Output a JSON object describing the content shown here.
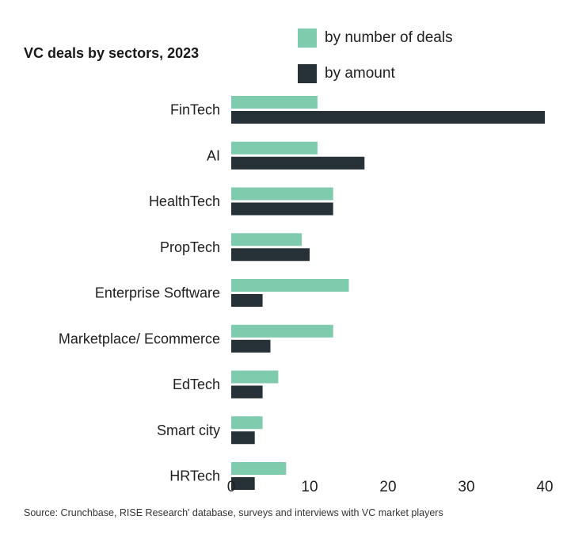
{
  "chart_data": {
    "type": "bar",
    "orientation": "horizontal",
    "title": "VC deals by sectors, 2023",
    "categories": [
      "FinTech",
      "AI",
      "HealthTech",
      "PropTech",
      "Enterprise Software",
      "Marketplace/ Ecommerce",
      "EdTech",
      "Smart city",
      "HRTech"
    ],
    "series": [
      {
        "name": "by number of deals",
        "color": "#7ecbad",
        "values": [
          11,
          11,
          13,
          9,
          15,
          13,
          6,
          4,
          7
        ]
      },
      {
        "name": "by amount",
        "color": "#263238",
        "values": [
          40,
          17,
          13,
          10,
          4,
          5,
          4,
          3,
          3
        ]
      }
    ],
    "xlim": [
      0,
      40
    ],
    "xticks": [
      0,
      10,
      20,
      30,
      40
    ],
    "xlabel": "",
    "ylabel": "",
    "grid": false,
    "legend_position": "top-right"
  },
  "legend": {
    "items": [
      "by number of deals",
      "by amount"
    ]
  },
  "source": "Source:  Crunchbase, RISE Research' database, surveys and interviews with VC market players"
}
